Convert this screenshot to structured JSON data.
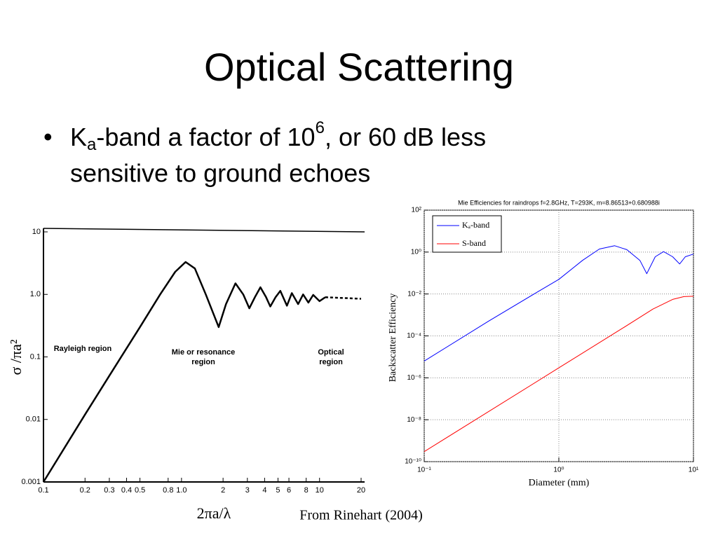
{
  "slide": {
    "title": "Optical Scattering",
    "bullet": [
      "K",
      "a",
      "-band a factor of 10",
      "6",
      ", or 60 dB less",
      "sensitive to ground echoes"
    ],
    "credit": "From Rinehart (2004)"
  },
  "chart_data": [
    {
      "type": "line",
      "xlog": true,
      "ylog": true,
      "xlabel": "2πa/λ",
      "ylabel": "σ /πa²",
      "annotations": [
        [
          "Rayleigh region"
        ],
        [
          "Mie or resonance",
          "region"
        ],
        [
          "Optical",
          "region"
        ]
      ],
      "xlim": [
        0.1,
        20
      ],
      "ylim": [
        0.001,
        10
      ],
      "xticks": [
        0.1,
        0.2,
        0.3,
        0.4,
        0.5,
        0.8,
        {
          "value": 1,
          "label": "1.0"
        },
        2,
        3,
        4,
        5,
        6,
        8,
        10,
        20
      ],
      "yticks": [
        0.001,
        0.01,
        0.1,
        {
          "value": 1,
          "label": "1.0"
        },
        10
      ],
      "series": [
        {
          "color": "#000000",
          "dash": false,
          "x": [
            0.1,
            0.2,
            0.3,
            0.5,
            0.7,
            0.9,
            1.07,
            1.25,
            1.5,
            1.86,
            2.1,
            2.46,
            2.8,
            3.1,
            3.4,
            3.73,
            4.1,
            4.4,
            4.8,
            5.2,
            5.8,
            6.3,
            7.0,
            7.6,
            8.3,
            9.0,
            10,
            11
          ],
          "values": [
            0.001,
            0.012,
            0.05,
            0.3,
            1.0,
            2.3,
            3.3,
            2.6,
            1.0,
            0.3,
            0.7,
            1.5,
            1.0,
            0.6,
            0.9,
            1.3,
            0.9,
            0.64,
            0.9,
            1.14,
            0.66,
            1.05,
            0.7,
            1.0,
            0.74,
            0.98,
            0.78,
            0.9
          ]
        },
        {
          "color": "#000000",
          "dash": true,
          "x": [
            11,
            20
          ],
          "values": [
            0.9,
            0.85
          ]
        }
      ]
    },
    {
      "type": "line",
      "xlog": true,
      "ylog": true,
      "grid": true,
      "title": "Mie Efficiencies for raindrops f=2.8GHz, T=293K, m=8.86513+0.680988i",
      "xlabel": "Diameter (mm)",
      "ylabel": "Backscatter Efficiency",
      "xlim": [
        0.1,
        10
      ],
      "ylim": [
        1e-10,
        100
      ],
      "xticks": [
        {
          "value": 0.1,
          "label": "10⁻¹"
        },
        {
          "value": 1,
          "label": "10⁰"
        },
        {
          "value": 10,
          "label": "10¹"
        }
      ],
      "yticks": [
        {
          "value": 1e-10,
          "label": "10⁻¹⁰"
        },
        {
          "value": 1e-08,
          "label": "10⁻⁸"
        },
        {
          "value": 1e-06,
          "label": "10⁻⁶"
        },
        {
          "value": 0.0001,
          "label": "10⁻⁴"
        },
        {
          "value": 0.01,
          "label": "10⁻²"
        },
        {
          "value": 1,
          "label": "10⁰"
        },
        {
          "value": 100,
          "label": "10²"
        }
      ],
      "legend": "upper left",
      "series": [
        {
          "name": "Kₐ-band",
          "color": "#0000ff",
          "x": [
            0.1,
            0.3,
            0.7,
            1,
            1.5,
            2,
            2.6,
            3.2,
            4,
            4.5,
            5.2,
            6,
            7,
            7.9,
            8.7,
            10
          ],
          "values": [
            6.3e-06,
            0.0005,
            0.013,
            0.05,
            0.4,
            1.4,
            2,
            1.3,
            0.4,
            0.093,
            0.6,
            1.05,
            0.6,
            0.27,
            0.6,
            0.8
          ]
        },
        {
          "name": "S-band",
          "color": "#ff0000",
          "x": [
            0.1,
            1,
            3,
            5,
            7,
            8.5,
            10
          ],
          "values": [
            3e-10,
            3e-06,
            0.00024,
            0.0019,
            0.0055,
            0.0075,
            0.0078
          ]
        }
      ]
    }
  ]
}
